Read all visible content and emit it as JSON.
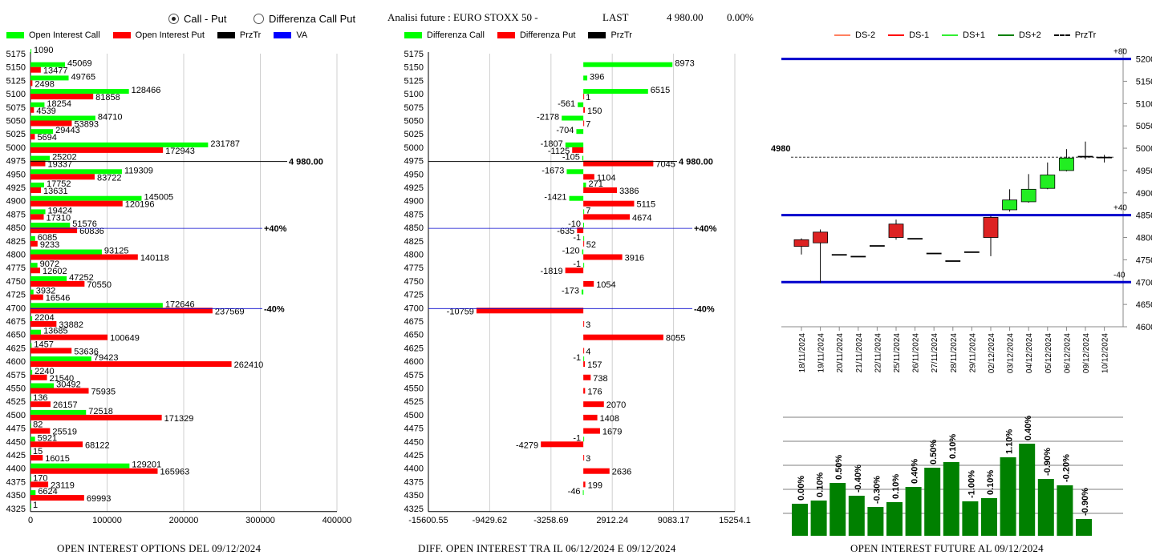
{
  "header": {
    "radio_call_put": "Call - Put",
    "radio_diff": "Differenza Call Put",
    "title": "Analisi future : EURO STOXX 50 -",
    "last_label": "LAST",
    "last_value": "4 980.00",
    "last_change": "0.00%"
  },
  "legend1": {
    "call": "Open Interest Call",
    "put": "Open Interest Put",
    "prztr": "PrzTr",
    "va": "VA"
  },
  "legend2": {
    "call": "Differenza Call",
    "put": "Differenza Put",
    "prztr": "PrzTr"
  },
  "legend3": {
    "ds2": "DS-2",
    "ds1": "DS-1",
    "dsp1": "DS+1",
    "dsp2": "DS+2",
    "prztr": "PrzTr"
  },
  "captions": {
    "c1": "OPEN INTEREST OPTIONS DEL 09/12/2024",
    "c2": "DIFF. OPEN INTEREST TRA IL 06/12/2024 E 09/12/2024",
    "c3": "OPEN INTEREST FUTURE AL 09/12/2024"
  },
  "colors": {
    "green": "#00ff00",
    "red": "#ff0000",
    "blue": "#0000cc",
    "dark_green": "#008000"
  },
  "chart_data": [
    {
      "type": "bar",
      "orientation": "horizontal",
      "strikes": [
        5175,
        5150,
        5125,
        5100,
        5075,
        5050,
        5025,
        5000,
        4975,
        4950,
        4925,
        4900,
        4875,
        4850,
        4825,
        4800,
        4775,
        4750,
        4725,
        4700,
        4675,
        4650,
        4625,
        4600,
        4575,
        4550,
        4525,
        4500,
        4475,
        4450,
        4425,
        4400,
        4375,
        4350,
        4325
      ],
      "series": [
        {
          "name": "Open Interest Call",
          "values": [
            1090,
            45069,
            49765,
            128466,
            18254,
            84710,
            29443,
            231787,
            25202,
            119309,
            17752,
            145005,
            19424,
            51576,
            6085,
            93125,
            9072,
            47252,
            3932,
            172646,
            2204,
            13685,
            1457,
            79423,
            2240,
            30492,
            136,
            72518,
            82,
            5921,
            15,
            129201,
            170,
            6624,
            1
          ]
        },
        {
          "name": "Open Interest Put",
          "values": [
            null,
            13477,
            2498,
            81858,
            4539,
            53893,
            5694,
            172943,
            19337,
            83722,
            13631,
            120196,
            17310,
            60836,
            9233,
            140118,
            12602,
            70550,
            16546,
            237569,
            33882,
            100649,
            53636,
            262410,
            21540,
            75935,
            26157,
            171329,
            25519,
            68122,
            16015,
            165963,
            23119,
            69993,
            null
          ]
        }
      ],
      "xlim": [
        0,
        400000
      ],
      "xticks": [
        "0",
        "100000",
        "200000",
        "300000",
        "400000"
      ],
      "annotations": [
        {
          "strike": 4975,
          "text": "4 980.00"
        },
        {
          "strike": 4850,
          "text": "+40%"
        },
        {
          "strike": 4700,
          "text": "-40%"
        }
      ]
    },
    {
      "type": "bar",
      "orientation": "horizontal",
      "strikes": [
        5175,
        5150,
        5125,
        5100,
        5075,
        5050,
        5025,
        5000,
        4975,
        4950,
        4925,
        4900,
        4875,
        4850,
        4825,
        4800,
        4775,
        4750,
        4725,
        4700,
        4675,
        4650,
        4625,
        4600,
        4575,
        4550,
        4525,
        4500,
        4475,
        4450,
        4425,
        4400,
        4375,
        4350,
        4325
      ],
      "series": [
        {
          "name": "Differenza Call",
          "values": [
            null,
            8973,
            396,
            6515,
            -561,
            -2178,
            -704,
            -1807,
            -105,
            -1673,
            271,
            -1421,
            7,
            -10,
            -1,
            -120,
            -1,
            null,
            -173,
            null,
            null,
            null,
            null,
            -1,
            null,
            null,
            null,
            null,
            null,
            -1,
            null,
            null,
            null,
            -46,
            null
          ]
        },
        {
          "name": "Differenza Put",
          "values": [
            null,
            null,
            null,
            1,
            150,
            7,
            null,
            -1125,
            7045,
            1104,
            3386,
            5115,
            4674,
            -635,
            52,
            3916,
            -1819,
            1054,
            null,
            -10759,
            3,
            8055,
            4,
            157,
            738,
            176,
            2070,
            1408,
            1679,
            -4279,
            3,
            2636,
            199,
            null,
            null
          ]
        }
      ],
      "xlim": [
        -15600.55,
        15254.1
      ],
      "xticks": [
        "-15600.55",
        "-9429.62",
        "-3258.69",
        "2912.24",
        "9083.17",
        "15254.1"
      ],
      "annotations": [
        {
          "strike": 4975,
          "text": "4 980.00"
        },
        {
          "strike": 4850,
          "text": "+40%"
        },
        {
          "strike": 4700,
          "text": "-40%"
        }
      ]
    },
    {
      "type": "candlestick",
      "dates": [
        "18/11/2024",
        "19/11/2024",
        "20/11/2024",
        "21/11/2024",
        "22/11/2024",
        "25/11/2024",
        "26/11/2024",
        "27/11/2024",
        "28/11/2024",
        "29/11/2024",
        "02/12/2024",
        "03/12/2024",
        "04/12/2024",
        "05/12/2024",
        "06/12/2024",
        "09/12/2024",
        "10/12/2024"
      ],
      "open": [
        4795,
        4812,
        4762,
        4758,
        4782,
        4830,
        4798,
        4765,
        4748,
        4768,
        4845,
        4862,
        4880,
        4910,
        4950,
        4982,
        4980
      ],
      "close": [
        4780,
        4788,
        4762,
        4758,
        4782,
        4800,
        4798,
        4765,
        4748,
        4768,
        4800,
        4884,
        4908,
        4940,
        4978,
        4982,
        4980
      ],
      "high": [
        4798,
        4818,
        4762,
        4758,
        4782,
        4840,
        4798,
        4765,
        4748,
        4768,
        4848,
        4908,
        4942,
        4968,
        4998,
        5015,
        4985
      ],
      "low": [
        4762,
        4698,
        4762,
        4758,
        4782,
        4795,
        4798,
        4765,
        4748,
        4768,
        4758,
        4858,
        4878,
        4908,
        4948,
        4975,
        4968
      ],
      "ylim": [
        4600,
        5210
      ],
      "yticks": [
        "4600",
        "4650",
        "4700",
        "4750",
        "4800",
        "4850",
        "4900",
        "4950",
        "5000",
        "5050",
        "5100",
        "5150",
        "5200"
      ],
      "levels": [
        {
          "value": 5200,
          "label": "+80"
        },
        {
          "value": 4850,
          "label": "+40"
        },
        {
          "value": 4700,
          "label": "-40"
        }
      ],
      "przTr": 4980,
      "przTr_label": "4980"
    },
    {
      "type": "bar",
      "values": [
        0.0,
        0.1,
        0.5,
        -0.4,
        -0.3,
        0.1,
        0.4,
        0.5,
        0.1,
        -1.0,
        0.1,
        1.1,
        0.4,
        -0.9,
        -0.2,
        -0.9
      ],
      "labels": [
        "0.00%",
        "0.10%",
        "0.50%",
        "-0.40%",
        "-0.30%",
        "0.10%",
        "0.40%",
        "0.50%",
        "0.10%",
        "-1.00%",
        "0.10%",
        "1.10%",
        "0.40%",
        "-0.90%",
        "-0.20%",
        "-0.90%"
      ],
      "heights": [
        40,
        44,
        66,
        50,
        36,
        42,
        61,
        85,
        92,
        43,
        47,
        98,
        115,
        71,
        63,
        21
      ]
    }
  ]
}
